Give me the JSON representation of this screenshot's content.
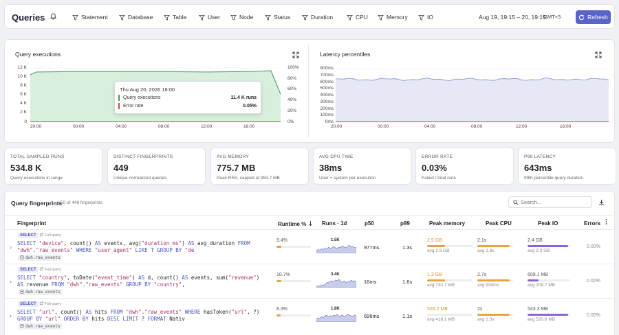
{
  "header": {
    "title": "Queries",
    "filters": [
      "Statement",
      "Database",
      "Table",
      "User",
      "Node",
      "Status",
      "Duration",
      "CPU",
      "Memory",
      "IO"
    ],
    "date_range": "Aug 19, 19:15 – 20, 19:15",
    "timezone": "GMT+3",
    "refresh_label": "Refresh"
  },
  "executions": {
    "title": "Query executions",
    "left_ticks": [
      "12 K",
      "10 K",
      "8 K",
      "6 K",
      "4 K",
      "2 K",
      "0"
    ],
    "right_ticks": [
      "100%",
      "80%",
      "60%",
      "40%",
      "20%",
      "0%"
    ],
    "x_ticks": [
      "20:00",
      "00:00",
      "04:00",
      "08:00",
      "12:00",
      "16:00"
    ],
    "tooltip": {
      "date": "Thu Aug 20, 2026 18:00",
      "rows": [
        {
          "label": "Query executions",
          "value": "11.4 K runs",
          "color": "#3a9a5b"
        },
        {
          "label": "Error rate",
          "value": "0.05%",
          "color": "#d9463b"
        }
      ]
    }
  },
  "latency": {
    "title": "Latency percentiles",
    "y_ticks": [
      "800ms",
      "700ms",
      "600ms",
      "500ms",
      "400ms",
      "300ms",
      "200ms",
      "100ms",
      "0ms"
    ],
    "x_ticks": [
      "20:00",
      "00:00",
      "04:00",
      "08:00",
      "12:00",
      "16:00"
    ]
  },
  "chart_data": [
    {
      "type": "area",
      "title": "Query executions",
      "x": [
        "19:15",
        "20:00",
        "00:00",
        "04:00",
        "08:00",
        "12:00",
        "16:00",
        "18:00",
        "19:15"
      ],
      "series": [
        {
          "name": "Query executions",
          "values": [
            10500,
            11100,
            11200,
            11200,
            11200,
            11100,
            11200,
            11400,
            6200
          ],
          "ylim": [
            0,
            12000
          ]
        },
        {
          "name": "Error rate",
          "values": [
            0.05,
            0.05,
            0.05,
            0.05,
            0.05,
            0.05,
            0.05,
            0.05,
            0.05
          ],
          "unit": "%",
          "ylim": [
            0,
            100
          ]
        }
      ]
    },
    {
      "type": "area",
      "title": "Latency percentiles",
      "x": [
        "19:15",
        "20:00",
        "00:00",
        "04:00",
        "08:00",
        "12:00",
        "16:00",
        "19:15"
      ],
      "series": [
        {
          "values": [
            640,
            650,
            630,
            645,
            640,
            650,
            660,
            640
          ]
        },
        {
          "values": [
            0,
            0,
            0,
            0,
            0,
            0,
            0,
            0
          ]
        }
      ],
      "ylim": [
        0,
        800
      ]
    }
  ],
  "stats": [
    {
      "label": "TOTAL SAMPLED RUNS",
      "value": "534.8 K",
      "sub": "Query executions in range"
    },
    {
      "label": "DISTINCT FINGERPRINTS",
      "value": "449",
      "sub": "Unique normalized queries"
    },
    {
      "label": "AVG MEMORY",
      "value": "775.7 MB",
      "sub": "Peak RSS, capped at 953.7 MB"
    },
    {
      "label": "AVG CPU TIME",
      "value": "38ms",
      "sub": "User + system per execution"
    },
    {
      "label": "ERROR RATE",
      "value": "0.03%",
      "sub": "Failed / total runs"
    },
    {
      "label": "P99 LATENCY",
      "value": "643ms",
      "sub": "99th percentile query duration"
    }
  ],
  "fingerprints": {
    "title": "Query fingerprints",
    "count": "50 of 449 fingerprints",
    "search_placeholder": "Search...",
    "columns": [
      "Fingerprint",
      "Runtime %",
      "Runs · 1d",
      "p50",
      "p99",
      "Peak memory",
      "Peak CPU",
      "Peak IO",
      "Errors"
    ],
    "rows": [
      {
        "badge": "SELECT",
        "full": "Full query",
        "table": "dwh.raw_events",
        "runtime": "9.4%",
        "runtime_pct": 9.4,
        "runs": "1.5K",
        "p50": "977ms",
        "p99": "1.3s",
        "mem": "2.5 GB",
        "mem_avg": "avg 2.9 GB",
        "mem_pct": 0.4,
        "cpu": "2.1s",
        "cpu_avg": "avg 1.8s",
        "cpu_pct": 0.9,
        "io": "2.4 GB",
        "io_avg": "avg 2.3 GB",
        "io_pct": 0.95,
        "errors": "0.00%"
      },
      {
        "badge": "SELECT",
        "full": "Full query",
        "table": "dwh.raw_events",
        "runtime": "10.7%",
        "runtime_pct": 10.7,
        "runs": "3.4K",
        "p50": "16ms",
        "p99": "1.6s",
        "mem": "1.3 GB",
        "mem_avg": "avg 730.7 MB",
        "mem_pct": 0.4,
        "cpu": "2.7s",
        "cpu_avg": "avg 934ms",
        "cpu_pct": 0.9,
        "io": "609.1 MB",
        "io_avg": "avg 209.7 MB",
        "io_pct": 0.25,
        "errors": "0.00%"
      },
      {
        "badge": "SELECT",
        "full": "Full query",
        "table": "dwh.raw_events",
        "runtime": "8.3%",
        "runtime_pct": 8.3,
        "runs": "1.8K",
        "p50": "696ms",
        "p99": "1.1s",
        "mem": "526.2 MB",
        "mem_avg": "avg 418.1 MB",
        "mem_pct": 0.0,
        "cpu": "2s",
        "cpu_avg": "avg 1.3s",
        "cpu_pct": 0.9,
        "io": "543.3 MB",
        "io_avg": "avg 520.8 MB",
        "io_pct": 0.95,
        "errors": "0.00%"
      }
    ]
  }
}
